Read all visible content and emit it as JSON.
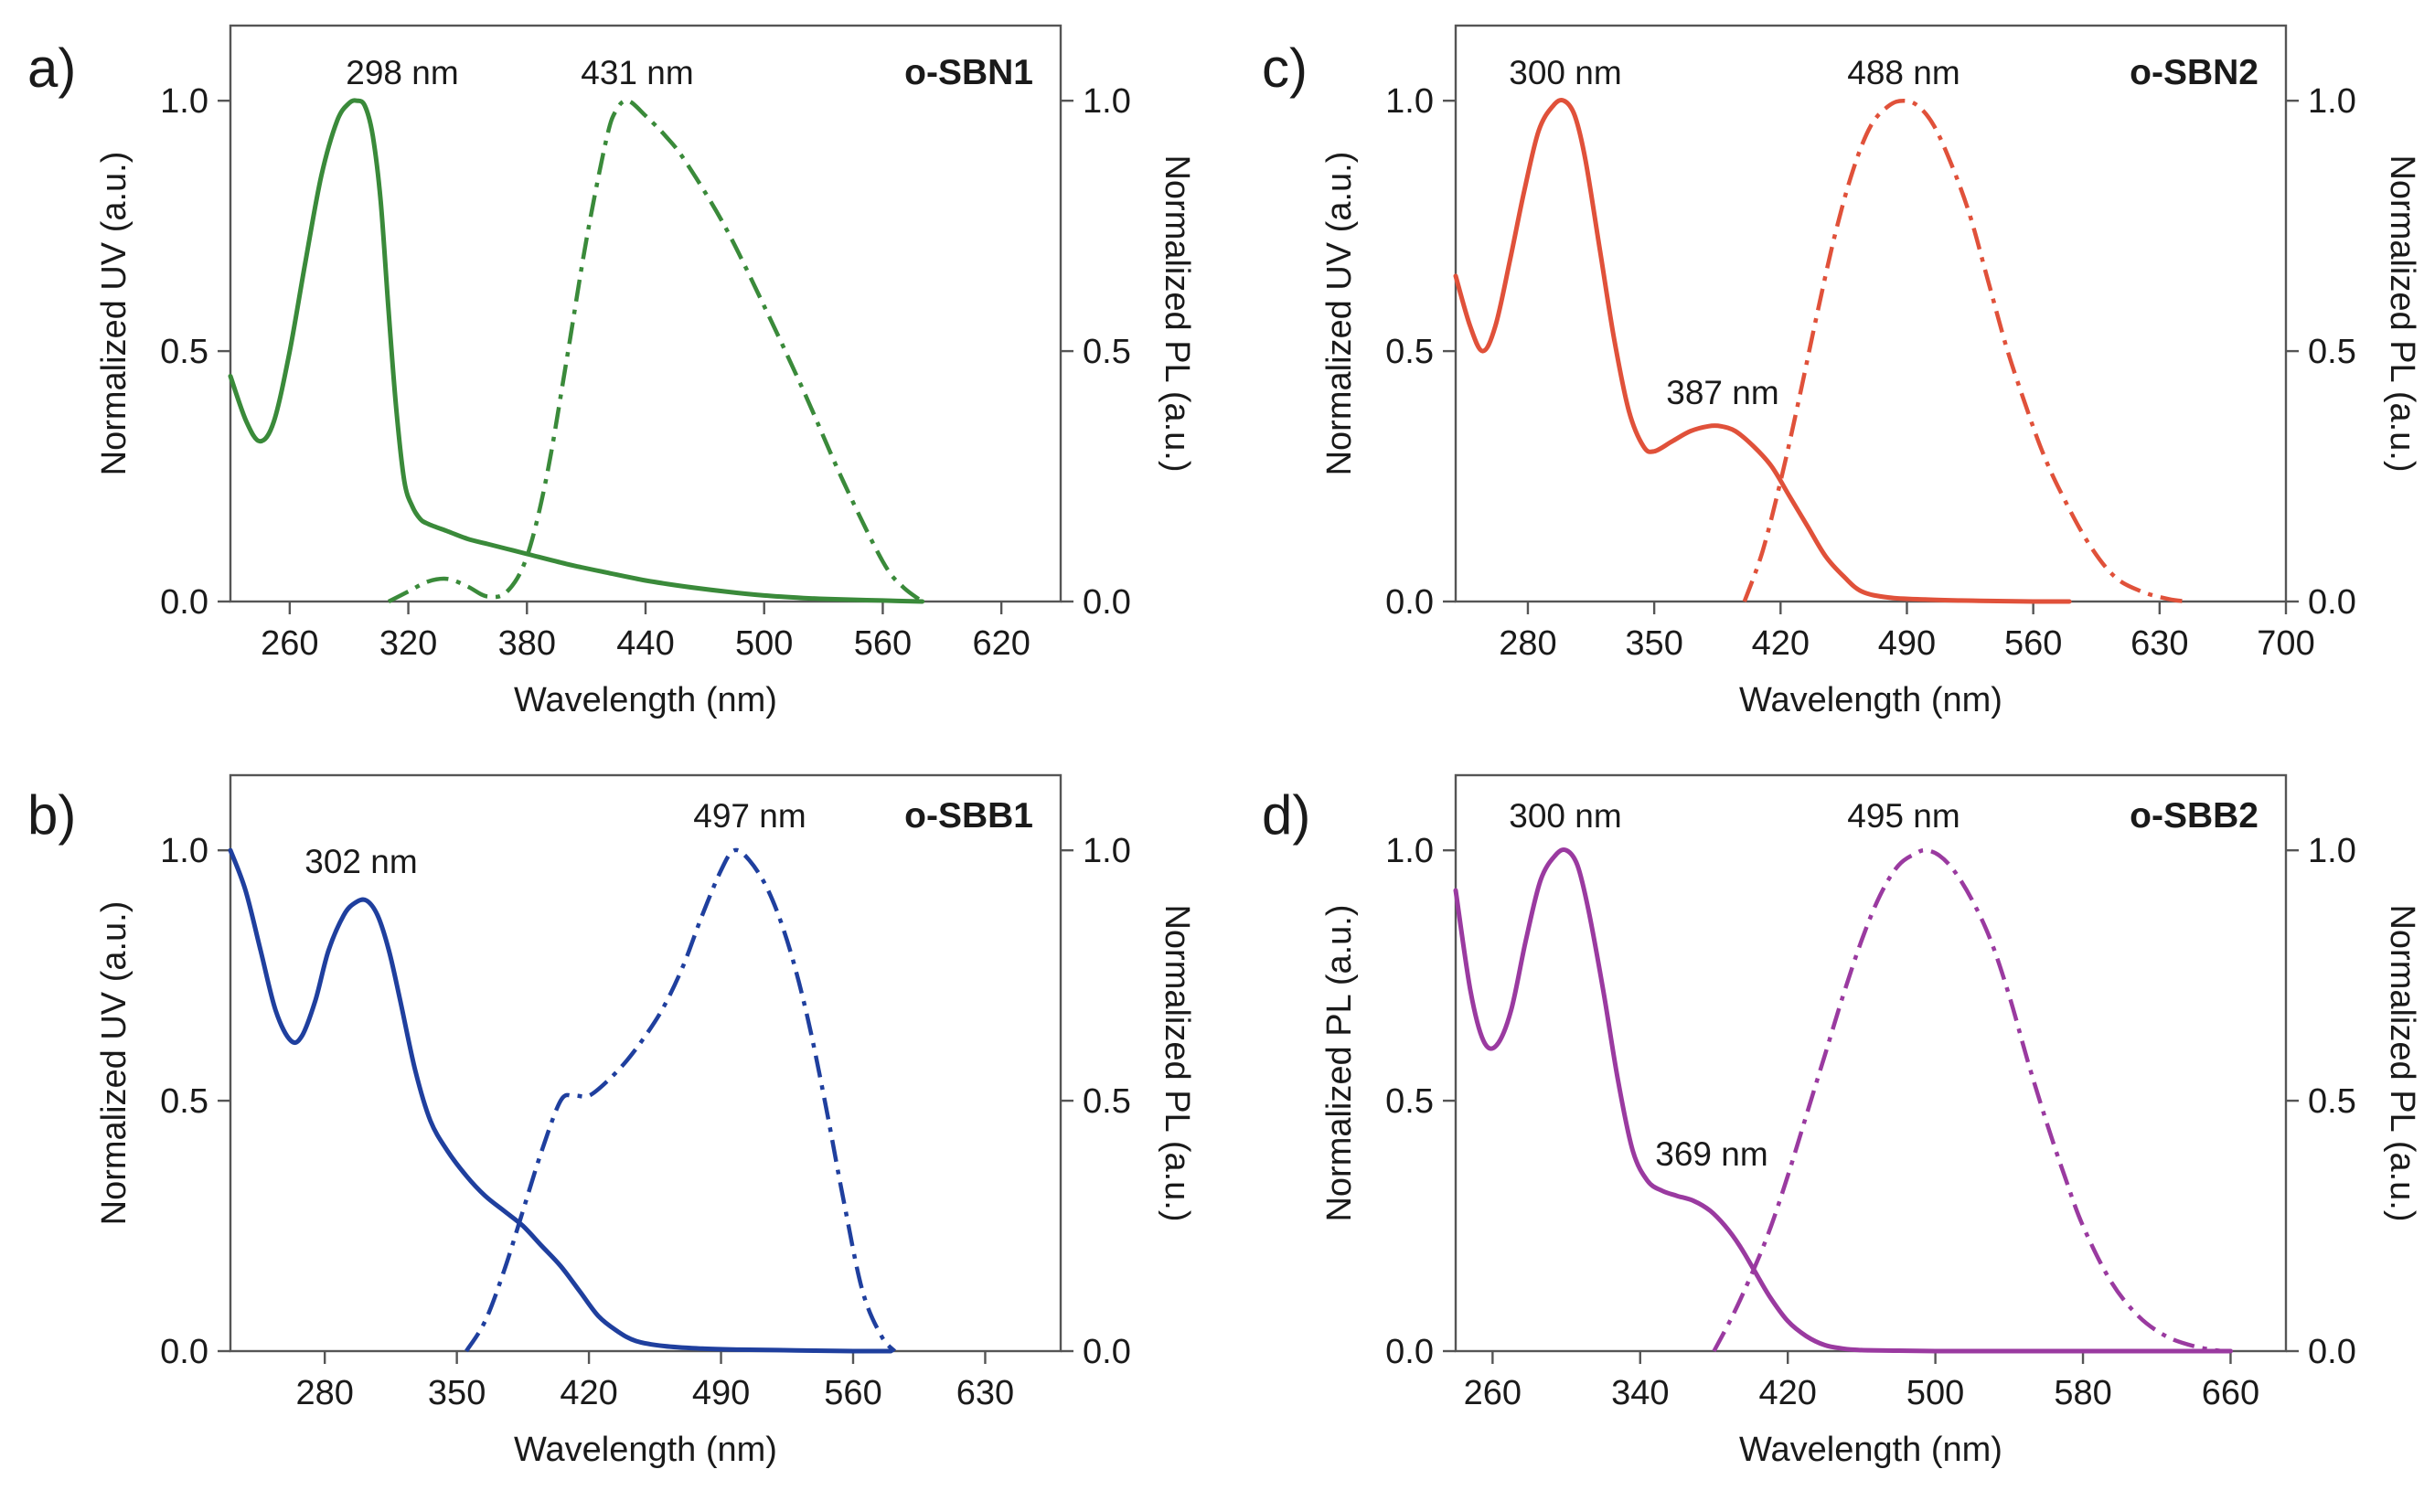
{
  "chart_data": [
    {
      "type": "line",
      "panel_letter": "a)",
      "compound": "o-SBN1",
      "xlabel": "Wavelength (nm)",
      "ylabel_left": "Normalized UV (a.u.)",
      "ylabel_right": "Normalized PL (a.u.)",
      "xlim": [
        230,
        650
      ],
      "xticks": [
        260,
        320,
        380,
        440,
        500,
        560,
        620
      ],
      "ylim": [
        0,
        1.15
      ],
      "yticks": [
        "0.0",
        "0.5",
        "1.0"
      ],
      "color": "#3a8a3a",
      "annotations": [
        {
          "text": "298 nm",
          "x": 298,
          "y": 1.0
        },
        {
          "text": "431 nm",
          "x": 431,
          "y": 1.0
        }
      ],
      "series": [
        {
          "name": "UV",
          "style": "solid",
          "x": [
            230,
            238,
            245,
            252,
            260,
            268,
            276,
            284,
            290,
            294,
            298,
            302,
            306,
            310,
            314,
            318,
            322,
            326,
            330,
            340,
            350,
            360,
            370,
            380,
            400,
            420,
            440,
            460,
            480,
            500,
            520,
            540,
            560,
            580
          ],
          "y": [
            0.45,
            0.36,
            0.32,
            0.36,
            0.5,
            0.68,
            0.85,
            0.96,
            0.995,
            1.0,
            0.99,
            0.93,
            0.8,
            0.58,
            0.38,
            0.24,
            0.19,
            0.165,
            0.155,
            0.14,
            0.125,
            0.115,
            0.105,
            0.095,
            0.075,
            0.058,
            0.042,
            0.03,
            0.02,
            0.012,
            0.007,
            0.004,
            0.002,
            0.0
          ]
        },
        {
          "name": "PL",
          "style": "dashdot",
          "x": [
            310,
            320,
            330,
            340,
            350,
            360,
            370,
            380,
            390,
            400,
            410,
            420,
            425,
            431,
            440,
            450,
            460,
            480,
            500,
            520,
            540,
            560,
            570,
            580
          ],
          "y": [
            0.0,
            0.02,
            0.04,
            0.045,
            0.03,
            0.01,
            0.02,
            0.09,
            0.25,
            0.48,
            0.72,
            0.92,
            0.98,
            1.0,
            0.97,
            0.93,
            0.88,
            0.75,
            0.59,
            0.42,
            0.24,
            0.08,
            0.03,
            0.0
          ]
        }
      ]
    },
    {
      "type": "line",
      "panel_letter": "b)",
      "compound": "o-SBB1",
      "xlabel": "Wavelength (nm)",
      "ylabel_left": "Normalized UV (a.u.)",
      "ylabel_right": "Normalized PL (a.u.)",
      "xlim": [
        230,
        670
      ],
      "xticks": [
        280,
        350,
        420,
        490,
        560,
        630
      ],
      "ylim": [
        0,
        1.15
      ],
      "yticks": [
        "0.0",
        "0.5",
        "1.0"
      ],
      "color": "#1f3f9e",
      "annotations": [
        {
          "text": "302 nm",
          "x": 302,
          "y": 0.9
        },
        {
          "text": "497 nm",
          "x": 497,
          "y": 1.0
        }
      ],
      "series": [
        {
          "name": "UV",
          "style": "solid",
          "x": [
            230,
            238,
            246,
            254,
            262,
            268,
            275,
            282,
            290,
            296,
            302,
            308,
            314,
            320,
            328,
            336,
            345,
            355,
            365,
            375,
            385,
            395,
            405,
            415,
            425,
            435,
            445,
            460,
            480,
            500,
            520,
            540,
            560,
            580
          ],
          "y": [
            1.0,
            0.92,
            0.8,
            0.68,
            0.62,
            0.63,
            0.7,
            0.8,
            0.87,
            0.895,
            0.9,
            0.87,
            0.8,
            0.7,
            0.56,
            0.46,
            0.4,
            0.35,
            0.31,
            0.28,
            0.25,
            0.21,
            0.17,
            0.12,
            0.07,
            0.04,
            0.02,
            0.01,
            0.005,
            0.003,
            0.002,
            0.001,
            0.0,
            0.0
          ]
        },
        {
          "name": "PL",
          "style": "dashdot",
          "x": [
            355,
            365,
            375,
            385,
            395,
            405,
            412,
            420,
            430,
            440,
            450,
            460,
            470,
            480,
            490,
            497,
            505,
            515,
            525,
            535,
            545,
            555,
            565,
            575,
            582
          ],
          "y": [
            0.0,
            0.06,
            0.16,
            0.28,
            0.4,
            0.5,
            0.51,
            0.51,
            0.54,
            0.58,
            0.63,
            0.69,
            0.77,
            0.87,
            0.96,
            1.0,
            0.98,
            0.92,
            0.82,
            0.68,
            0.5,
            0.3,
            0.12,
            0.03,
            0.0
          ]
        }
      ]
    },
    {
      "type": "line",
      "panel_letter": "c)",
      "compound": "o-SBN2",
      "xlabel": "Wavelength (nm)",
      "ylabel_left": "Normalized UV (a.u.)",
      "ylabel_right": "Normalized PL (a.u.)",
      "xlim": [
        240,
        700
      ],
      "xticks": [
        280,
        350,
        420,
        490,
        560,
        630,
        700
      ],
      "ylim": [
        0,
        1.15
      ],
      "yticks": [
        "0.0",
        "0.5",
        "1.0"
      ],
      "color": "#e0513a",
      "annotations": [
        {
          "text": "300 nm",
          "x": 300,
          "y": 1.0
        },
        {
          "text": "488 nm",
          "x": 488,
          "y": 1.0
        },
        {
          "text": "387 nm",
          "x": 387,
          "y": 0.35
        }
      ],
      "series": [
        {
          "name": "UV",
          "style": "solid",
          "x": [
            240,
            248,
            255,
            262,
            270,
            278,
            286,
            294,
            300,
            306,
            312,
            320,
            328,
            336,
            344,
            350,
            360,
            370,
            380,
            387,
            395,
            405,
            415,
            425,
            435,
            445,
            455,
            465,
            480,
            500,
            520,
            540,
            560,
            580
          ],
          "y": [
            0.65,
            0.55,
            0.5,
            0.55,
            0.68,
            0.82,
            0.94,
            0.99,
            1.0,
            0.97,
            0.88,
            0.7,
            0.52,
            0.38,
            0.31,
            0.3,
            0.32,
            0.34,
            0.35,
            0.35,
            0.34,
            0.31,
            0.27,
            0.21,
            0.15,
            0.09,
            0.05,
            0.02,
            0.008,
            0.004,
            0.002,
            0.001,
            0.0,
            0.0
          ]
        },
        {
          "name": "PL",
          "style": "dashdot",
          "x": [
            400,
            410,
            420,
            430,
            440,
            450,
            460,
            470,
            480,
            488,
            496,
            505,
            515,
            525,
            535,
            545,
            555,
            565,
            575,
            590,
            605,
            620,
            635,
            645
          ],
          "y": [
            0.0,
            0.1,
            0.24,
            0.4,
            0.57,
            0.73,
            0.86,
            0.95,
            0.99,
            1.0,
            0.99,
            0.95,
            0.87,
            0.77,
            0.64,
            0.51,
            0.4,
            0.3,
            0.22,
            0.12,
            0.05,
            0.02,
            0.005,
            0.0
          ]
        }
      ]
    },
    {
      "type": "line",
      "panel_letter": "d)",
      "compound": "o-SBB2",
      "xlabel": "Wavelength (nm)",
      "ylabel_left": "Normalized PL (a.u.)",
      "ylabel_right": "Normalized PL (a.u.)",
      "xlim": [
        240,
        690
      ],
      "xticks": [
        260,
        340,
        420,
        500,
        580,
        660
      ],
      "ylim": [
        0,
        1.15
      ],
      "yticks": [
        "0.0",
        "0.5",
        "1.0"
      ],
      "color": "#9a3aa0",
      "annotations": [
        {
          "text": "300 nm",
          "x": 300,
          "y": 1.0
        },
        {
          "text": "495 nm",
          "x": 495,
          "y": 1.0
        },
        {
          "text": "369 nm",
          "x": 369,
          "y": 0.3
        }
      ],
      "series": [
        {
          "name": "UV",
          "style": "solid",
          "x": [
            240,
            248,
            255,
            262,
            270,
            278,
            286,
            294,
            300,
            306,
            312,
            320,
            328,
            336,
            344,
            352,
            360,
            369,
            378,
            386,
            394,
            402,
            410,
            420,
            430,
            440,
            450,
            460,
            480,
            500,
            520,
            560,
            600,
            660
          ],
          "y": [
            0.92,
            0.72,
            0.62,
            0.61,
            0.68,
            0.82,
            0.94,
            0.99,
            1.0,
            0.97,
            0.88,
            0.72,
            0.54,
            0.4,
            0.34,
            0.32,
            0.31,
            0.3,
            0.28,
            0.25,
            0.21,
            0.16,
            0.11,
            0.06,
            0.03,
            0.012,
            0.005,
            0.002,
            0.001,
            0.0,
            0.0,
            0.0,
            0.0,
            0.0
          ]
        },
        {
          "name": "PL",
          "style": "dashdot",
          "x": [
            380,
            390,
            400,
            410,
            420,
            430,
            440,
            450,
            460,
            470,
            480,
            490,
            495,
            502,
            510,
            520,
            530,
            540,
            550,
            560,
            570,
            580,
            595,
            610,
            625,
            640,
            655
          ],
          "y": [
            0.0,
            0.07,
            0.15,
            0.24,
            0.35,
            0.47,
            0.59,
            0.71,
            0.82,
            0.91,
            0.97,
            0.995,
            1.0,
            0.99,
            0.96,
            0.9,
            0.82,
            0.71,
            0.58,
            0.46,
            0.35,
            0.25,
            0.14,
            0.07,
            0.03,
            0.01,
            0.0
          ]
        }
      ]
    }
  ]
}
